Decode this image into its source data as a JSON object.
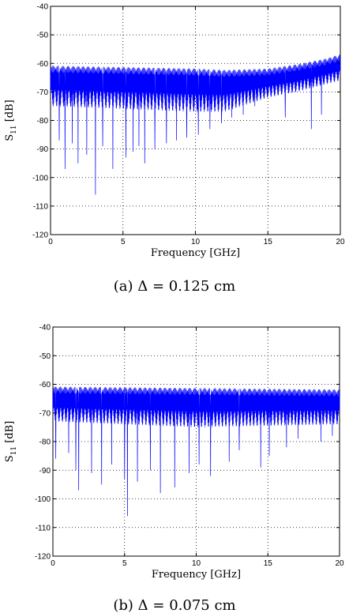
{
  "chart_data": [
    {
      "type": "line",
      "caption": "(a) Δ = 0.125 cm",
      "xlabel": "Frequency [GHz]",
      "ylabel_main": "S",
      "ylabel_sub": "11",
      "ylabel_unit": " [dB]",
      "xlim": [
        0,
        20
      ],
      "ylim": [
        -120,
        -40
      ],
      "xticks": [
        0,
        5,
        10,
        15,
        20
      ],
      "yticks": [
        -40,
        -50,
        -60,
        -70,
        -80,
        -90,
        -100,
        -110,
        -120
      ],
      "grid": true,
      "color": "#0000ff",
      "series": [
        {
          "upper_envelope": [
            [
              0,
              -62
            ],
            [
              5,
              -62.5
            ],
            [
              10,
              -63
            ],
            [
              12,
              -63.5
            ],
            [
              15,
              -63
            ],
            [
              17,
              -61.5
            ],
            [
              19,
              -59.5
            ],
            [
              20,
              -58
            ]
          ],
          "lower_envelope": [
            [
              0,
              -75
            ],
            [
              5,
              -76
            ],
            [
              10,
              -77
            ],
            [
              12,
              -77
            ],
            [
              15,
              -72
            ],
            [
              17,
              -70
            ],
            [
              20,
              -66
            ]
          ],
          "dips": [
            [
              0.6,
              -87
            ],
            [
              1.0,
              -97
            ],
            [
              1.5,
              -88
            ],
            [
              1.9,
              -95
            ],
            [
              2.5,
              -92
            ],
            [
              3.1,
              -106
            ],
            [
              3.6,
              -89
            ],
            [
              4.3,
              -97
            ],
            [
              5.2,
              -93
            ],
            [
              5.7,
              -91
            ],
            [
              6.1,
              -89
            ],
            [
              6.5,
              -95
            ],
            [
              7.2,
              -90
            ],
            [
              8.0,
              -88
            ],
            [
              8.7,
              -87
            ],
            [
              9.4,
              -86
            ],
            [
              10.2,
              -85
            ],
            [
              11.0,
              -83
            ],
            [
              11.8,
              -81
            ],
            [
              12.5,
              -79
            ],
            [
              13.3,
              -78
            ],
            [
              14.1,
              -75
            ],
            [
              16.2,
              -79
            ],
            [
              18.0,
              -83
            ],
            [
              18.7,
              -78
            ]
          ]
        }
      ]
    },
    {
      "type": "line",
      "caption": "(b) Δ = 0.075 cm",
      "xlabel": "Frequency [GHz]",
      "ylabel_main": "S",
      "ylabel_sub": "11",
      "ylabel_unit": " [dB]",
      "xlim": [
        0,
        20
      ],
      "ylim": [
        -120,
        -40
      ],
      "xticks": [
        0,
        5,
        10,
        15,
        20
      ],
      "yticks": [
        -40,
        -50,
        -60,
        -70,
        -80,
        -90,
        -100,
        -110,
        -120
      ],
      "grid": true,
      "color": "#0000ff",
      "series": [
        {
          "upper_envelope": [
            [
              0,
              -62
            ],
            [
              10,
              -62.5
            ],
            [
              20,
              -63
            ]
          ],
          "lower_envelope": [
            [
              0,
              -73
            ],
            [
              10,
              -75
            ],
            [
              20,
              -74
            ]
          ],
          "dips": [
            [
              0.2,
              -86
            ],
            [
              1.1,
              -84
            ],
            [
              1.6,
              -90
            ],
            [
              1.8,
              -97
            ],
            [
              2.7,
              -91
            ],
            [
              3.4,
              -95
            ],
            [
              4.1,
              -88
            ],
            [
              5.0,
              -93
            ],
            [
              5.2,
              -106
            ],
            [
              5.9,
              -94
            ],
            [
              6.8,
              -90
            ],
            [
              7.5,
              -98
            ],
            [
              8.5,
              -96
            ],
            [
              9.5,
              -91
            ],
            [
              10.2,
              -88
            ],
            [
              11.0,
              -92
            ],
            [
              12.3,
              -87
            ],
            [
              13.0,
              -83
            ],
            [
              14.5,
              -89
            ],
            [
              15.1,
              -85
            ],
            [
              16.3,
              -82
            ],
            [
              17.1,
              -79
            ],
            [
              18.7,
              -80
            ],
            [
              19.5,
              -78
            ]
          ]
        }
      ]
    }
  ]
}
